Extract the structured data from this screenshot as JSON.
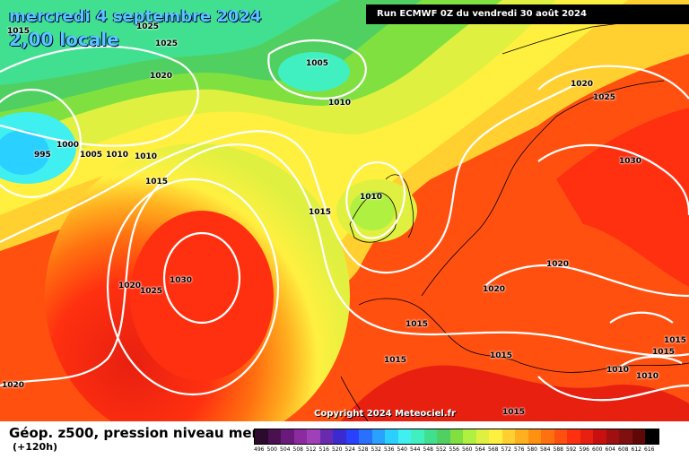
{
  "title": {
    "date": "mercredi 4 septembre 2024",
    "time": "2,00 locale"
  },
  "run": "Run ECMWF 0Z du vendredi 30 août 2024",
  "copyright": "Copyright 2024 Meteociel.fr",
  "legend": {
    "title": "Géop. z500, pression niveau mer",
    "subtitle": "(+120h)",
    "ticks": [
      "496",
      "500",
      "504",
      "508",
      "512",
      "516",
      "520",
      "524",
      "528",
      "532",
      "536",
      "540",
      "544",
      "548",
      "552",
      "556",
      "560",
      "564",
      "568",
      "572",
      "576",
      "580",
      "584",
      "588",
      "592",
      "596",
      "600",
      "604",
      "608",
      "612",
      "616"
    ],
    "colors": [
      "#2b0a2e",
      "#4a1050",
      "#6a1a7a",
      "#8c2aa0",
      "#a040b8",
      "#6a2ab0",
      "#3a2ad0",
      "#2a40ff",
      "#2a70ff",
      "#2aa0ff",
      "#2ad0ff",
      "#40f0f0",
      "#40f0c0",
      "#40e090",
      "#50d060",
      "#80e040",
      "#b0f040",
      "#e0f040",
      "#fff040",
      "#ffd030",
      "#ffb020",
      "#ff9010",
      "#ff7010",
      "#ff5010",
      "#ff3010",
      "#e82010",
      "#c81010",
      "#a01010",
      "#801010",
      "#600808",
      "#000000"
    ]
  },
  "isobars": [
    {
      "text": "1015"
    },
    {
      "text": "1025"
    },
    {
      "text": "1025"
    },
    {
      "text": "1020"
    },
    {
      "text": "1005"
    },
    {
      "text": "1010"
    },
    {
      "text": "1000"
    },
    {
      "text": "995"
    },
    {
      "text": "1005"
    },
    {
      "text": "1010"
    },
    {
      "text": "1010"
    },
    {
      "text": "1015"
    },
    {
      "text": "1010"
    },
    {
      "text": "1015"
    },
    {
      "text": "1030"
    },
    {
      "text": "1020"
    },
    {
      "text": "1025"
    },
    {
      "text": "1020"
    },
    {
      "text": "1025"
    },
    {
      "text": "1030"
    },
    {
      "text": "1020"
    },
    {
      "text": "1020"
    },
    {
      "text": "1015"
    },
    {
      "text": "1015"
    },
    {
      "text": "1015"
    },
    {
      "text": "1015"
    },
    {
      "text": "1015"
    },
    {
      "text": "1010"
    },
    {
      "text": "1010"
    },
    {
      "text": "1020"
    },
    {
      "text": "1015"
    }
  ]
}
